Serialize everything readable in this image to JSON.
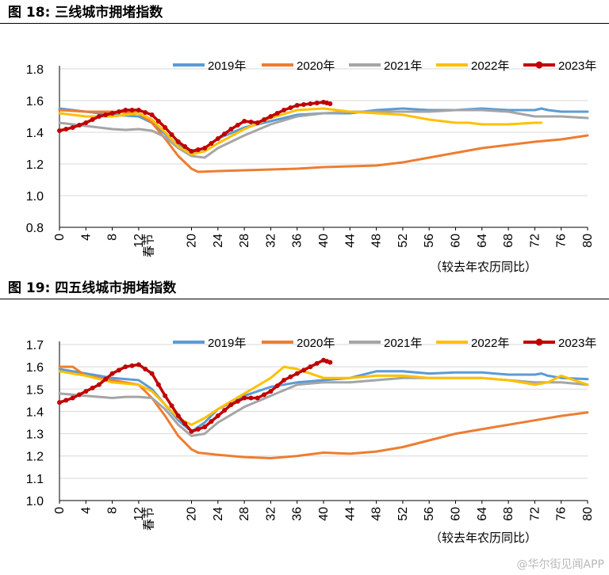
{
  "figures": [
    {
      "title": "图 18:  三线城市拥堵指数"
    },
    {
      "title": "图 19:  四五线城市拥堵指数"
    }
  ],
  "watermark": "@华尔街见闻APP",
  "series_colors": {
    "2019年": "#5b9bd5",
    "2020年": "#ed7d31",
    "2021年": "#a5a5a5",
    "2022年": "#ffc000",
    "2023年": "#c00000"
  },
  "chart_data": [
    {
      "type": "line",
      "title": "三线城市拥堵指数",
      "xlabel": "（较去年农历同比）",
      "x_ticks": [
        0,
        4,
        8,
        12,
        20,
        24,
        28,
        32,
        36,
        40,
        44,
        48,
        52,
        56,
        60,
        64,
        68,
        72,
        76,
        80
      ],
      "x_special_label": "春节",
      "x_special_at": 13.5,
      "xlim": [
        0,
        80
      ],
      "ylim": [
        0.8,
        1.8
      ],
      "y_ticks": [
        0.8,
        1.0,
        1.2,
        1.4,
        1.6,
        1.8
      ],
      "y_tick_labels": [
        "0.8",
        "1.0",
        "1.2",
        "1.4",
        "1.6",
        "1.8"
      ],
      "grid": true,
      "legend": "top",
      "series": [
        {
          "name": "2019年",
          "x": [
            0,
            4,
            8,
            12,
            14,
            16,
            18,
            20,
            22,
            24,
            28,
            32,
            36,
            40,
            44,
            48,
            52,
            56,
            60,
            64,
            68,
            72,
            73,
            74,
            76,
            80
          ],
          "values": [
            1.55,
            1.53,
            1.51,
            1.5,
            1.46,
            1.39,
            1.32,
            1.27,
            1.3,
            1.36,
            1.43,
            1.47,
            1.51,
            1.52,
            1.52,
            1.54,
            1.55,
            1.54,
            1.54,
            1.55,
            1.54,
            1.54,
            1.55,
            1.54,
            1.53,
            1.53
          ]
        },
        {
          "name": "2020年",
          "x": [
            0,
            4,
            8,
            12,
            14,
            16,
            18,
            20,
            21,
            24,
            28,
            32,
            36,
            40,
            44,
            48,
            52,
            56,
            60,
            64,
            68,
            72,
            76,
            80
          ],
          "values": [
            1.54,
            1.53,
            1.53,
            1.52,
            1.46,
            1.36,
            1.25,
            1.17,
            1.15,
            1.155,
            1.16,
            1.165,
            1.17,
            1.18,
            1.185,
            1.19,
            1.21,
            1.24,
            1.27,
            1.3,
            1.32,
            1.34,
            1.355,
            1.38
          ]
        },
        {
          "name": "2021年",
          "x": [
            0,
            4,
            8,
            10,
            12,
            14,
            16,
            18,
            20,
            22,
            24,
            28,
            32,
            36,
            40,
            44,
            48,
            52,
            56,
            60,
            64,
            68,
            72,
            76,
            80
          ],
          "values": [
            1.46,
            1.44,
            1.42,
            1.415,
            1.42,
            1.41,
            1.37,
            1.3,
            1.25,
            1.24,
            1.3,
            1.38,
            1.45,
            1.5,
            1.52,
            1.53,
            1.53,
            1.53,
            1.53,
            1.54,
            1.54,
            1.53,
            1.5,
            1.5,
            1.49
          ]
        },
        {
          "name": "2022年",
          "x": [
            0,
            4,
            8,
            12,
            14,
            16,
            18,
            20,
            22,
            24,
            28,
            32,
            36,
            40,
            44,
            48,
            52,
            56,
            60,
            62,
            64,
            68,
            72,
            73
          ],
          "values": [
            1.52,
            1.5,
            1.5,
            1.52,
            1.48,
            1.4,
            1.31,
            1.26,
            1.28,
            1.33,
            1.42,
            1.49,
            1.54,
            1.55,
            1.53,
            1.52,
            1.51,
            1.48,
            1.46,
            1.46,
            1.45,
            1.45,
            1.46,
            1.46
          ]
        },
        {
          "name": "2023年",
          "x": [
            0,
            2,
            4,
            6,
            8,
            10,
            12,
            14,
            16,
            18,
            20,
            22,
            24,
            26,
            28,
            30,
            32,
            34,
            36,
            38,
            40,
            41
          ],
          "values": [
            1.41,
            1.43,
            1.46,
            1.5,
            1.52,
            1.54,
            1.54,
            1.51,
            1.43,
            1.34,
            1.28,
            1.3,
            1.36,
            1.42,
            1.47,
            1.46,
            1.5,
            1.54,
            1.57,
            1.58,
            1.59,
            1.58
          ]
        }
      ]
    },
    {
      "type": "line",
      "title": "四五线城市拥堵指数",
      "xlabel": "（较去年农历同比）",
      "x_ticks": [
        0,
        4,
        8,
        12,
        20,
        24,
        28,
        32,
        36,
        40,
        44,
        48,
        52,
        56,
        60,
        64,
        68,
        72,
        76,
        80
      ],
      "x_special_label": "春节",
      "x_special_at": 13.5,
      "xlim": [
        0,
        80
      ],
      "ylim": [
        1.0,
        1.7
      ],
      "y_ticks": [
        1.0,
        1.1,
        1.2,
        1.3,
        1.4,
        1.5,
        1.6,
        1.7
      ],
      "y_tick_labels": [
        "1.0",
        "1.1",
        "1.2",
        "1.3",
        "1.4",
        "1.5",
        "1.6",
        "1.7"
      ],
      "grid": true,
      "legend": "top",
      "series": [
        {
          "name": "2019年",
          "x": [
            0,
            4,
            8,
            12,
            14,
            16,
            18,
            20,
            22,
            24,
            28,
            32,
            36,
            40,
            44,
            48,
            52,
            56,
            60,
            64,
            68,
            72,
            73,
            74,
            76,
            80
          ],
          "values": [
            1.59,
            1.57,
            1.55,
            1.54,
            1.5,
            1.43,
            1.36,
            1.31,
            1.35,
            1.41,
            1.47,
            1.51,
            1.53,
            1.54,
            1.55,
            1.58,
            1.58,
            1.57,
            1.575,
            1.575,
            1.565,
            1.565,
            1.57,
            1.56,
            1.55,
            1.545
          ]
        },
        {
          "name": "2020年",
          "x": [
            0,
            2,
            3,
            4,
            8,
            12,
            14,
            16,
            18,
            20,
            21,
            24,
            28,
            32,
            36,
            40,
            44,
            48,
            52,
            56,
            60,
            64,
            68,
            72,
            76,
            80
          ],
          "values": [
            1.6,
            1.6,
            1.58,
            1.56,
            1.54,
            1.52,
            1.46,
            1.38,
            1.29,
            1.23,
            1.215,
            1.205,
            1.195,
            1.19,
            1.2,
            1.215,
            1.21,
            1.22,
            1.24,
            1.27,
            1.3,
            1.32,
            1.34,
            1.36,
            1.38,
            1.395
          ]
        },
        {
          "name": "2021年",
          "x": [
            0,
            4,
            8,
            10,
            12,
            14,
            16,
            18,
            20,
            22,
            24,
            28,
            32,
            36,
            40,
            44,
            48,
            52,
            56,
            60,
            64,
            68,
            72,
            76,
            80
          ],
          "values": [
            1.48,
            1.47,
            1.46,
            1.465,
            1.465,
            1.46,
            1.41,
            1.34,
            1.29,
            1.3,
            1.35,
            1.42,
            1.47,
            1.52,
            1.53,
            1.53,
            1.54,
            1.55,
            1.55,
            1.55,
            1.55,
            1.54,
            1.53,
            1.53,
            1.52
          ]
        },
        {
          "name": "2022年",
          "x": [
            0,
            4,
            8,
            12,
            14,
            16,
            18,
            20,
            22,
            24,
            28,
            32,
            34,
            36,
            38,
            40,
            44,
            48,
            52,
            56,
            60,
            64,
            68,
            72,
            74,
            76,
            80
          ],
          "values": [
            1.58,
            1.56,
            1.53,
            1.52,
            1.49,
            1.43,
            1.37,
            1.34,
            1.37,
            1.41,
            1.48,
            1.55,
            1.6,
            1.59,
            1.57,
            1.55,
            1.55,
            1.56,
            1.56,
            1.55,
            1.55,
            1.55,
            1.54,
            1.52,
            1.53,
            1.56,
            1.52
          ]
        },
        {
          "name": "2023年",
          "x": [
            0,
            2,
            4,
            6,
            8,
            10,
            12,
            14,
            16,
            18,
            20,
            22,
            24,
            26,
            28,
            30,
            32,
            34,
            36,
            38,
            40,
            41
          ],
          "values": [
            1.44,
            1.46,
            1.49,
            1.52,
            1.57,
            1.6,
            1.61,
            1.57,
            1.47,
            1.38,
            1.31,
            1.33,
            1.38,
            1.43,
            1.46,
            1.46,
            1.49,
            1.54,
            1.57,
            1.6,
            1.63,
            1.62
          ]
        }
      ]
    }
  ]
}
